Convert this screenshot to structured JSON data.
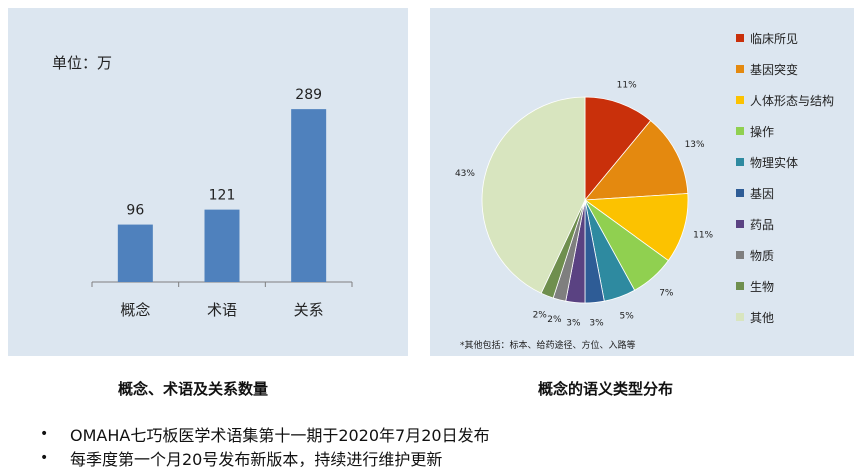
{
  "bar_panel": {
    "unit_label": "单位：万",
    "caption": "概念、术语及关系数量"
  },
  "pie_panel": {
    "caption": "概念的语义类型分布",
    "footnote": "*其他包括：标本、给药途径、方位、入路等"
  },
  "bullets": [
    "OMAHA七巧板医学术语集第十一期于2020年7月20日发布",
    "每季度第一个月20号发布新版本，持续进行维护更新"
  ],
  "chart_data": [
    {
      "type": "bar",
      "categories": [
        "概念",
        "术语",
        "关系"
      ],
      "values": [
        96,
        121,
        289
      ],
      "ylim": [
        0,
        320
      ],
      "grid": false,
      "color": "#4f81bd"
    },
    {
      "type": "pie",
      "categories": [
        "临床所见",
        "基因突变",
        "人体形态与结构",
        "操作",
        "物理实体",
        "基因",
        "药品",
        "物质",
        "生物",
        "其他"
      ],
      "values": [
        11,
        13,
        11,
        7,
        5,
        3,
        3,
        2,
        2,
        43
      ],
      "labels": [
        "11%",
        "13%",
        "11%",
        "7%",
        "5%",
        "3%",
        "3%",
        "2%",
        "2%",
        "43%"
      ],
      "colors": [
        "#c9300b",
        "#e4890f",
        "#fcc200",
        "#90d050",
        "#2e8aa0",
        "#2e5c96",
        "#5a4282",
        "#7f7f7f",
        "#6f8f4e",
        "#d8e5bf"
      ],
      "legend_position": "right"
    }
  ]
}
